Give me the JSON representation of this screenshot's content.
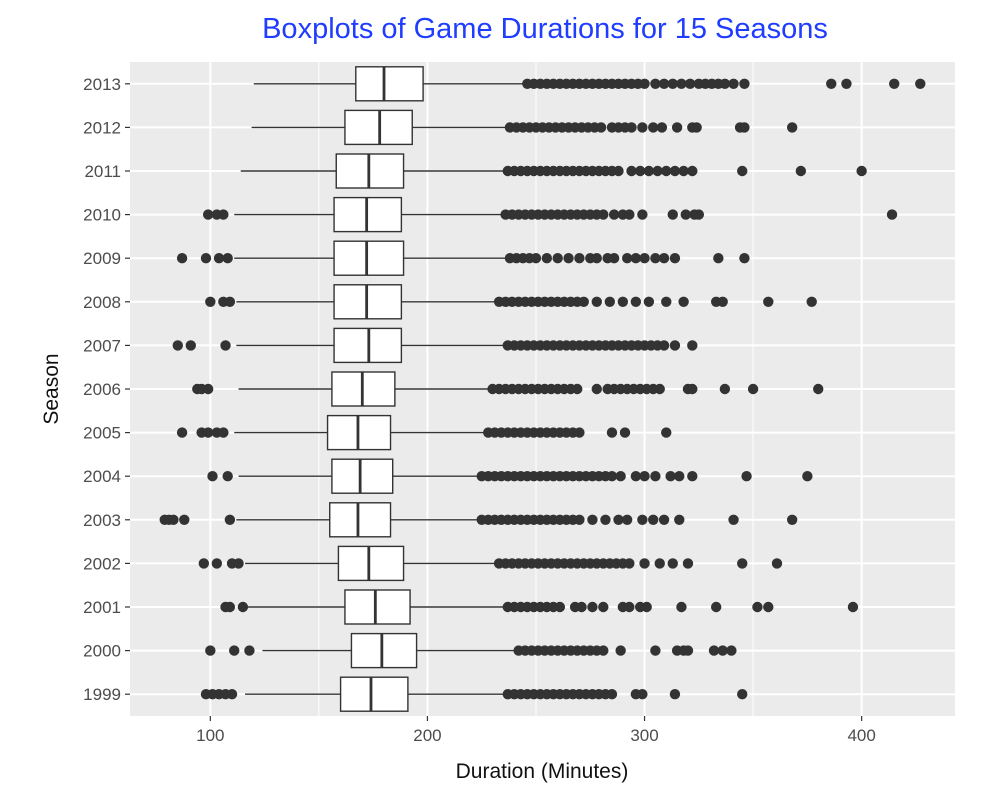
{
  "chart_data": {
    "type": "boxplot",
    "orientation": "horizontal",
    "title": "Boxplots of Game Durations for 15 Seasons",
    "xlabel": "Duration (Minutes)",
    "ylabel": "Season",
    "xlim": [
      63,
      443
    ],
    "x_ticks": [
      "100",
      "200",
      "300",
      "400"
    ],
    "x_tick_values": [
      100,
      200,
      300,
      400
    ],
    "grid": true,
    "panel_color": "#ebebeb",
    "box_fill": "#ffffff",
    "box_stroke": "#333333",
    "outlier_color": "#333333",
    "categories": [
      "1999",
      "2000",
      "2001",
      "2002",
      "2003",
      "2004",
      "2005",
      "2006",
      "2007",
      "2008",
      "2009",
      "2010",
      "2011",
      "2012",
      "2013"
    ],
    "boxes": [
      {
        "label": "1999",
        "whisker_low": 116,
        "q1": 160,
        "median": 174,
        "q3": 191,
        "whisker_high": 236,
        "outliers": [
          98,
          101,
          104,
          107,
          110,
          237,
          240,
          243,
          246,
          249,
          252,
          255,
          258,
          261,
          264,
          267,
          270,
          273,
          276,
          279,
          282,
          285,
          296,
          299,
          314,
          345
        ]
      },
      {
        "label": "2000",
        "whisker_low": 124,
        "q1": 165,
        "median": 179,
        "q3": 195,
        "whisker_high": 241,
        "outliers": [
          100,
          111,
          118,
          242,
          245,
          248,
          251,
          254,
          257,
          260,
          263,
          266,
          269,
          272,
          275,
          278,
          281,
          289,
          305,
          315,
          318,
          320,
          332,
          336,
          340
        ]
      },
      {
        "label": "2001",
        "whisker_low": 116,
        "q1": 162,
        "median": 176,
        "q3": 192,
        "whisker_high": 236,
        "outliers": [
          107,
          109,
          115,
          237,
          240,
          243,
          246,
          249,
          252,
          255,
          258,
          261,
          268,
          271,
          276,
          281,
          290,
          293,
          298,
          301,
          317,
          333,
          352,
          357,
          396
        ]
      },
      {
        "label": "2002",
        "whisker_low": 116,
        "q1": 159,
        "median": 173,
        "q3": 189,
        "whisker_high": 232,
        "outliers": [
          97,
          103,
          110,
          113,
          233,
          236,
          239,
          242,
          245,
          248,
          251,
          254,
          257,
          260,
          263,
          266,
          269,
          272,
          275,
          278,
          281,
          284,
          287,
          290,
          293,
          300,
          307,
          313,
          320,
          345,
          361
        ]
      },
      {
        "label": "2003",
        "whisker_low": 112,
        "q1": 155,
        "median": 168,
        "q3": 183,
        "whisker_high": 224,
        "outliers": [
          79,
          81,
          83,
          88,
          109,
          225,
          228,
          231,
          234,
          237,
          240,
          243,
          246,
          249,
          252,
          255,
          258,
          261,
          264,
          267,
          270,
          276,
          282,
          288,
          292,
          299,
          304,
          309,
          316,
          341,
          368
        ]
      },
      {
        "label": "2004",
        "whisker_low": 113,
        "q1": 156,
        "median": 169,
        "q3": 184,
        "whisker_high": 224,
        "outliers": [
          101,
          108,
          225,
          228,
          231,
          234,
          237,
          240,
          243,
          246,
          249,
          252,
          255,
          258,
          261,
          264,
          267,
          270,
          273,
          276,
          279,
          282,
          285,
          289,
          296,
          300,
          305,
          312,
          316,
          322,
          347,
          375
        ]
      },
      {
        "label": "2005",
        "whisker_low": 111,
        "q1": 154,
        "median": 168,
        "q3": 183,
        "whisker_high": 227,
        "outliers": [
          87,
          96,
          99,
          103,
          106,
          228,
          231,
          234,
          237,
          240,
          243,
          246,
          249,
          252,
          255,
          258,
          261,
          264,
          267,
          270,
          285,
          291,
          310
        ]
      },
      {
        "label": "2006",
        "whisker_low": 113,
        "q1": 156,
        "median": 170,
        "q3": 185,
        "whisker_high": 229,
        "outliers": [
          94,
          96,
          99,
          230,
          233,
          236,
          239,
          242,
          245,
          248,
          251,
          254,
          257,
          260,
          263,
          266,
          269,
          278,
          283,
          286,
          289,
          292,
          295,
          298,
          301,
          304,
          307,
          320,
          322,
          337,
          350,
          380
        ]
      },
      {
        "label": "2007",
        "whisker_low": 112,
        "q1": 157,
        "median": 173,
        "q3": 188,
        "whisker_high": 236,
        "outliers": [
          85,
          91,
          107,
          237,
          240,
          243,
          246,
          249,
          252,
          255,
          258,
          261,
          264,
          267,
          270,
          273,
          276,
          279,
          282,
          285,
          288,
          291,
          294,
          297,
          300,
          303,
          306,
          309,
          314,
          322
        ]
      },
      {
        "label": "2008",
        "whisker_low": 112,
        "q1": 157,
        "median": 172,
        "q3": 188,
        "whisker_high": 232,
        "outliers": [
          100,
          106,
          109,
          233,
          236,
          239,
          242,
          245,
          248,
          251,
          254,
          257,
          260,
          263,
          266,
          269,
          272,
          278,
          284,
          290,
          296,
          302,
          310,
          318,
          333,
          336,
          357,
          377
        ]
      },
      {
        "label": "2009",
        "whisker_low": 111,
        "q1": 157,
        "median": 172,
        "q3": 189,
        "whisker_high": 237,
        "outliers": [
          87,
          98,
          104,
          108,
          238,
          241,
          244,
          247,
          250,
          255,
          260,
          265,
          270,
          275,
          278,
          283,
          286,
          292,
          296,
          300,
          305,
          309,
          314,
          334,
          346
        ]
      },
      {
        "label": "2010",
        "whisker_low": 111,
        "q1": 157,
        "median": 172,
        "q3": 188,
        "whisker_high": 235,
        "outliers": [
          99,
          103,
          106,
          236,
          239,
          242,
          245,
          248,
          251,
          254,
          257,
          260,
          263,
          266,
          269,
          272,
          275,
          278,
          281,
          286,
          290,
          293,
          299,
          313,
          319,
          323,
          325,
          414
        ]
      },
      {
        "label": "2011",
        "whisker_low": 114,
        "q1": 158,
        "median": 173,
        "q3": 189,
        "whisker_high": 236,
        "outliers": [
          237,
          240,
          243,
          246,
          249,
          252,
          255,
          258,
          261,
          264,
          267,
          270,
          273,
          276,
          279,
          282,
          285,
          288,
          294,
          298,
          302,
          306,
          310,
          314,
          318,
          322,
          345,
          372,
          400
        ]
      },
      {
        "label": "2012",
        "whisker_low": 119,
        "q1": 162,
        "median": 178,
        "q3": 193,
        "whisker_high": 237,
        "outliers": [
          238,
          241,
          244,
          247,
          250,
          253,
          256,
          259,
          262,
          265,
          268,
          271,
          274,
          277,
          280,
          285,
          288,
          291,
          294,
          299,
          304,
          308,
          315,
          322,
          324,
          344,
          346,
          368
        ]
      },
      {
        "label": "2013",
        "whisker_low": 120,
        "q1": 167,
        "median": 180,
        "q3": 198,
        "whisker_high": 245,
        "outliers": [
          246,
          249,
          252,
          255,
          258,
          261,
          264,
          267,
          270,
          273,
          276,
          279,
          282,
          285,
          288,
          291,
          294,
          297,
          300,
          305,
          309,
          313,
          317,
          321,
          325,
          328,
          331,
          334,
          337,
          341,
          346,
          386,
          393,
          415,
          427
        ]
      }
    ]
  }
}
